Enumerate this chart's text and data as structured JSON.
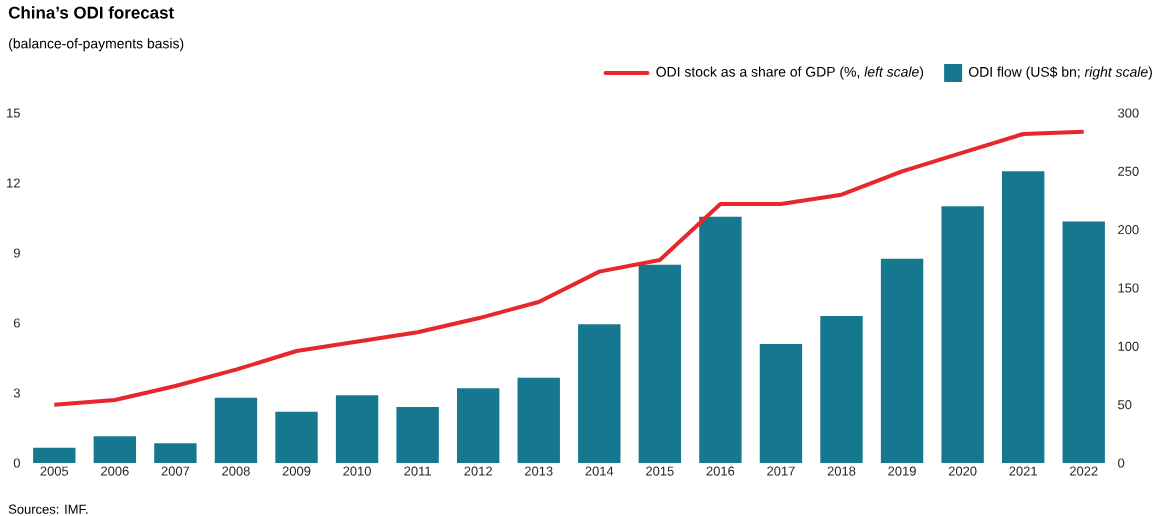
{
  "chart_data": {
    "type": "line",
    "title": "China’s ODI forecast",
    "subtitle": "(balance-of-payments basis)",
    "categories": [
      "2005",
      "2006",
      "2007",
      "2008",
      "2009",
      "2010",
      "2011",
      "2012",
      "2013",
      "2014",
      "2015",
      "2016",
      "2017",
      "2018",
      "2019",
      "2020",
      "2021",
      "2022"
    ],
    "series": [
      {
        "name": "ODI stock as a share of GDP (%, *left scale*)",
        "color": "#e8262d",
        "values": [
          2.5,
          2.7,
          3.3,
          4.0,
          4.8,
          5.2,
          5.6,
          6.2,
          6.9,
          8.2,
          8.7,
          11.1,
          11.1,
          11.5,
          12.5,
          13.3,
          14.1,
          14.2
        ]
      },
      {
        "name": "ODI flow (US$ bn; *right scale*)",
        "type": "bar",
        "axis": "y2",
        "color": "#16788f",
        "values": [
          13,
          23,
          17,
          56,
          44,
          58,
          48,
          64,
          73,
          119,
          170,
          211,
          102,
          126,
          175,
          220,
          250,
          207
        ]
      }
    ],
    "ylim": [
      0,
      15
    ],
    "yticks": [
      0,
      3,
      6,
      9,
      12,
      15
    ],
    "y2lim": [
      0,
      300
    ],
    "y2ticks": [
      0,
      50,
      100,
      150,
      200,
      250,
      300
    ],
    "legend": "top right",
    "annotations": [
      "Sources: IMF."
    ]
  }
}
